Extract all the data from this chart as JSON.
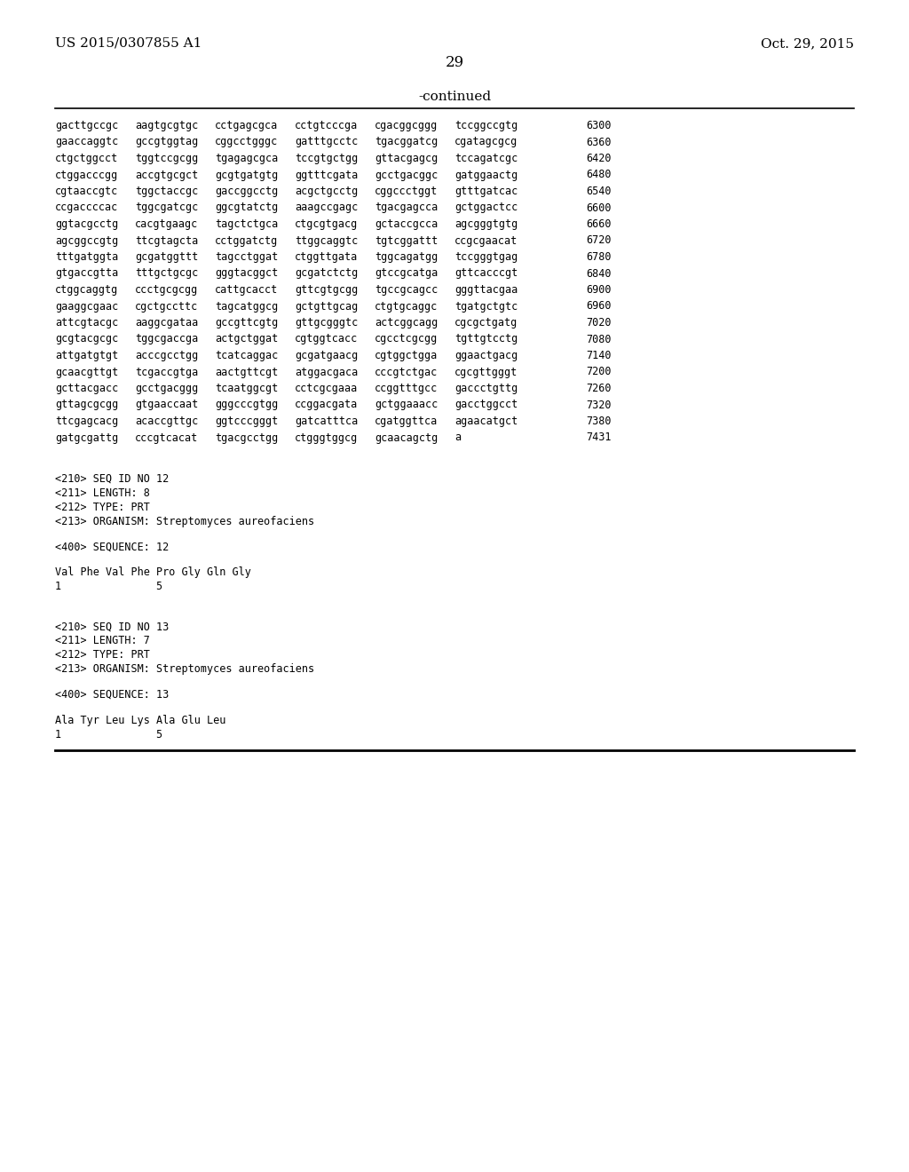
{
  "header_left": "US 2015/0307855 A1",
  "header_right": "Oct. 29, 2015",
  "page_number": "29",
  "continued_label": "-continued",
  "background_color": "#ffffff",
  "text_color": "#000000",
  "sequence_lines": [
    [
      "gacttgccgc",
      "aagtgcgtgc",
      "cctgagcgca",
      "cctgtcccga",
      "cgacggcggg",
      "tccggccgtg",
      "6300"
    ],
    [
      "gaaccaggtc",
      "gccgtggtag",
      "cggcctgggc",
      "gatttgcctc",
      "tgacggatcg",
      "cgatagcgcg",
      "6360"
    ],
    [
      "ctgctggcct",
      "tggtccgcgg",
      "tgagagcgca",
      "tccgtgctgg",
      "gttacgagcg",
      "tccagatcgc",
      "6420"
    ],
    [
      "ctggacccgg",
      "accgtgcgct",
      "gcgtgatgtg",
      "ggtttcgata",
      "gcctgacggc",
      "gatggaactg",
      "6480"
    ],
    [
      "cgtaaccgtc",
      "tggctaccgc",
      "gaccggcctg",
      "acgctgcctg",
      "cggccctggt",
      "gtttgatcac",
      "6540"
    ],
    [
      "ccgaccccac",
      "tggcgatcgc",
      "ggcgtatctg",
      "aaagccgagc",
      "tgacgagcca",
      "gctggactcc",
      "6600"
    ],
    [
      "ggtacgcctg",
      "cacgtgaagc",
      "tagctctgca",
      "ctgcgtgacg",
      "gctaccgcca",
      "agcgggtgtg",
      "6660"
    ],
    [
      "agcggccgtg",
      "ttcgtagcta",
      "cctggatctg",
      "ttggcaggtc",
      "tgtcggattt",
      "ccgcgaacat",
      "6720"
    ],
    [
      "tttgatggta",
      "gcgatggttt",
      "tagcctggat",
      "ctggttgata",
      "tggcagatgg",
      "tccgggtgag",
      "6780"
    ],
    [
      "gtgaccgtta",
      "tttgctgcgc",
      "gggtacggct",
      "gcgatctctg",
      "gtccgcatga",
      "gttcacccgt",
      "6840"
    ],
    [
      "ctggcaggtg",
      "ccctgcgcgg",
      "cattgcacct",
      "gttcgtgcgg",
      "tgccgcagcc",
      "gggttacgaa",
      "6900"
    ],
    [
      "gaaggcgaac",
      "cgctgccttc",
      "tagcatggcg",
      "gctgttgcag",
      "ctgtgcaggc",
      "tgatgctgtc",
      "6960"
    ],
    [
      "attcgtacgc",
      "aaggcgataa",
      "gccgttcgtg",
      "gttgcgggtc",
      "actcggcagg",
      "cgcgctgatg",
      "7020"
    ],
    [
      "gcgtacgcgc",
      "tggcgaccga",
      "actgctggat",
      "cgtggtcacc",
      "cgcctcgcgg",
      "tgttgtcctg",
      "7080"
    ],
    [
      "attgatgtgt",
      "acccgcctgg",
      "tcatcaggac",
      "gcgatgaacg",
      "cgtggctgga",
      "ggaactgacg",
      "7140"
    ],
    [
      "gcaacgttgt",
      "tcgaccgtga",
      "aactgttcgt",
      "atggacgaca",
      "cccgtctgac",
      "cgcgttgggt",
      "7200"
    ],
    [
      "gcttacgacc",
      "gcctgacggg",
      "tcaatggcgt",
      "cctcgcgaaa",
      "ccggtttgcc",
      "gaccctgttg",
      "7260"
    ],
    [
      "gttagcgcgg",
      "gtgaaccaat",
      "gggcccgtgg",
      "ccggacgata",
      "gctggaaacc",
      "gacctggcct",
      "7320"
    ],
    [
      "ttcgagcacg",
      "acaccgttgc",
      "ggtcccgggt",
      "gatcatttca",
      "cgatggttca",
      "agaacatgct",
      "7380"
    ],
    [
      "gatgcgattg",
      "cccgtcacat",
      "tgacgcctgg",
      "ctgggtggcg",
      "gcaacagctg",
      "a",
      "7431"
    ]
  ],
  "metadata_blocks": [
    {
      "lines": [
        "<210> SEQ ID NO 12",
        "<211> LENGTH: 8",
        "<212> TYPE: PRT",
        "<213> ORGANISM: Streptomyces aureofaciens"
      ]
    },
    {
      "lines": [
        "<400> SEQUENCE: 12"
      ]
    },
    {
      "lines": [
        "Val Phe Val Phe Pro Gly Gln Gly",
        "1               5"
      ]
    },
    {
      "lines": [
        "<210> SEQ ID NO 13",
        "<211> LENGTH: 7",
        "<212> TYPE: PRT",
        "<213> ORGANISM: Streptomyces aureofaciens"
      ]
    },
    {
      "lines": [
        "<400> SEQUENCE: 13"
      ]
    },
    {
      "lines": [
        "Ala Tyr Leu Lys Ala Glu Leu",
        "1               5"
      ]
    }
  ]
}
